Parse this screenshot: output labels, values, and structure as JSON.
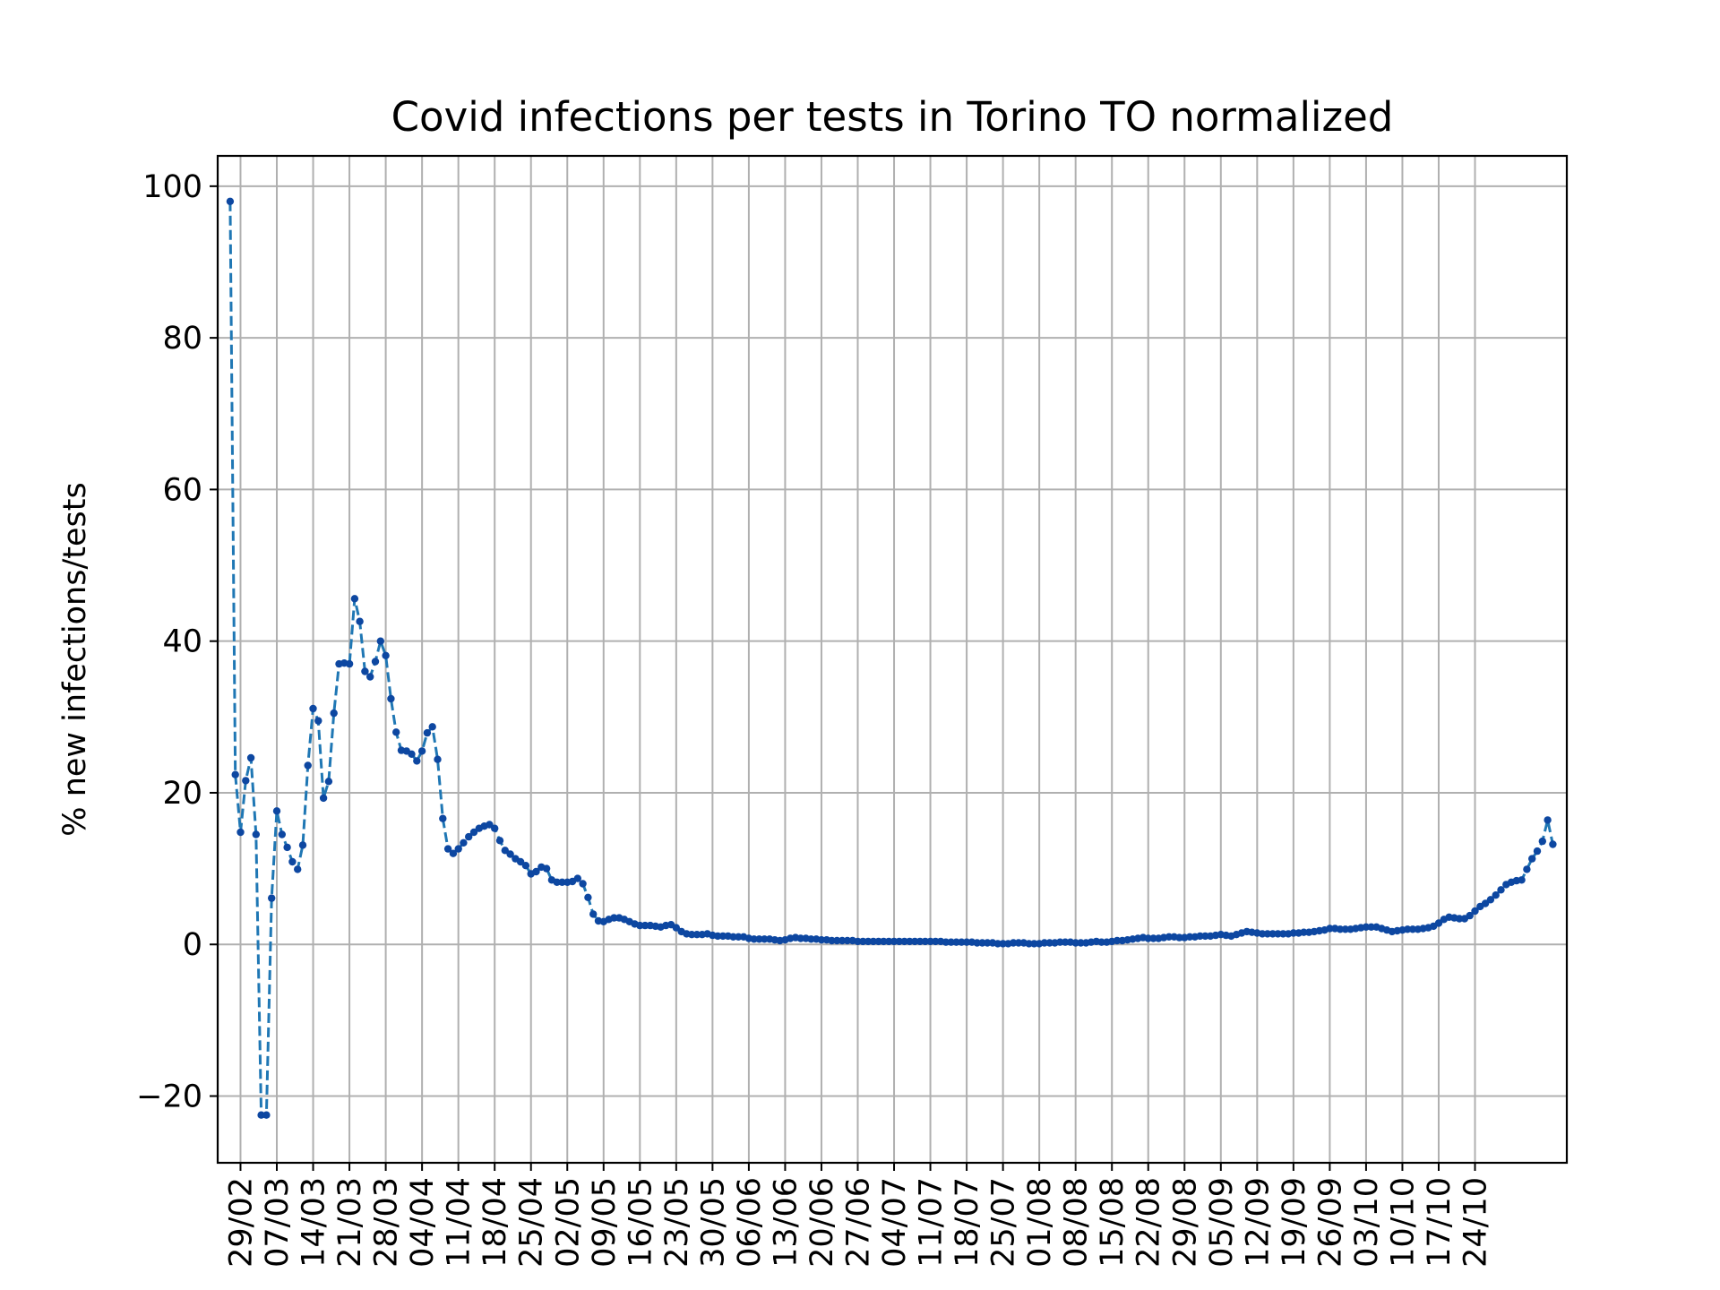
{
  "chart_data": {
    "type": "line",
    "title": "Covid infections per tests in Torino TO normalized",
    "xlabel": "",
    "ylabel": "% new infections/tests",
    "ylim": [
      -28.8,
      104
    ],
    "y_ticks": [
      -20,
      0,
      20,
      40,
      60,
      80,
      100
    ],
    "y_tick_labels": [
      "−20",
      "0",
      "20",
      "40",
      "60",
      "80",
      "100"
    ],
    "x_ticks": [
      "29/02",
      "07/03",
      "14/03",
      "21/03",
      "28/03",
      "04/04",
      "11/04",
      "18/04",
      "25/04",
      "02/05",
      "09/05",
      "16/05",
      "23/05",
      "30/05",
      "06/06",
      "13/06",
      "20/06",
      "27/06",
      "04/07",
      "11/07",
      "18/07",
      "25/07",
      "01/08",
      "08/08",
      "15/08",
      "22/08",
      "29/08",
      "05/09",
      "12/09",
      "19/09",
      "26/09",
      "03/10",
      "10/10",
      "17/10",
      "24/10"
    ],
    "grid": true,
    "series_color": "#1f77b4",
    "line_style": "dashed",
    "marker_color": "#0d47a1",
    "x_start": "2020-02-27",
    "series": [
      {
        "values": [
          98,
          22.4,
          14.8,
          21.6,
          24.6,
          14.5,
          -22.5,
          -22.5,
          6.1,
          17.6,
          14.5,
          12.8,
          10.9,
          9.9,
          13.1,
          23.6,
          31.1,
          29.5,
          19.3,
          21.5,
          30.5,
          37.0,
          37.1,
          37.0,
          45.6,
          42.6,
          36.0,
          35.3,
          37.3,
          40.0,
          38.1,
          32.4,
          28.0,
          25.6,
          25.5,
          25.1,
          24.2,
          25.5,
          27.9,
          28.7,
          24.4,
          16.6,
          12.6,
          12.0,
          12.6,
          13.4,
          14.2,
          14.8,
          15.3,
          15.6,
          15.8,
          15.3,
          13.7,
          12.4,
          11.9,
          11.3,
          10.9,
          10.4,
          9.3,
          9.6,
          10.2,
          10.0,
          8.5,
          8.2,
          8.2,
          8.2,
          8.3,
          8.7,
          8.0,
          6.2,
          4.0,
          3.1,
          3.0,
          3.3,
          3.5,
          3.5,
          3.3,
          3.0,
          2.7,
          2.5,
          2.5,
          2.5,
          2.4,
          2.3,
          2.5,
          2.6,
          2.2,
          1.7,
          1.4,
          1.3,
          1.3,
          1.3,
          1.4,
          1.2,
          1.1,
          1.1,
          1.1,
          1.0,
          1.0,
          1.0,
          0.8,
          0.7,
          0.7,
          0.7,
          0.7,
          0.6,
          0.5,
          0.6,
          0.8,
          0.9,
          0.8,
          0.8,
          0.7,
          0.7,
          0.6,
          0.6,
          0.5,
          0.5,
          0.5,
          0.5,
          0.5,
          0.4,
          0.4,
          0.4,
          0.4,
          0.4,
          0.4,
          0.4,
          0.4,
          0.4,
          0.4,
          0.4,
          0.4,
          0.4,
          0.4,
          0.4,
          0.4,
          0.4,
          0.3,
          0.3,
          0.3,
          0.3,
          0.3,
          0.3,
          0.2,
          0.2,
          0.2,
          0.2,
          0.1,
          0.1,
          0.1,
          0.2,
          0.2,
          0.2,
          0.1,
          0.1,
          0.1,
          0.2,
          0.2,
          0.2,
          0.3,
          0.3,
          0.3,
          0.2,
          0.2,
          0.2,
          0.3,
          0.4,
          0.3,
          0.3,
          0.4,
          0.5,
          0.5,
          0.6,
          0.7,
          0.8,
          0.9,
          0.8,
          0.8,
          0.8,
          0.9,
          1.0,
          1.0,
          0.9,
          0.9,
          1.0,
          1.0,
          1.1,
          1.1,
          1.1,
          1.2,
          1.3,
          1.2,
          1.1,
          1.3,
          1.5,
          1.7,
          1.6,
          1.5,
          1.4,
          1.4,
          1.4,
          1.4,
          1.4,
          1.4,
          1.5,
          1.5,
          1.6,
          1.6,
          1.7,
          1.8,
          1.9,
          2.1,
          2.1,
          2.0,
          2.0,
          2.0,
          2.1,
          2.2,
          2.3,
          2.3,
          2.3,
          2.1,
          1.9,
          1.7,
          1.8,
          1.9,
          2.0,
          2.0,
          2.0,
          2.1,
          2.2,
          2.4,
          2.8,
          3.3,
          3.6,
          3.5,
          3.4,
          3.4,
          3.8,
          4.4,
          5.0,
          5.4,
          5.9,
          6.5,
          7.2,
          7.9,
          8.2,
          8.4,
          8.5,
          9.9,
          11.3,
          12.3,
          13.6,
          16.4,
          13.2
        ]
      }
    ]
  }
}
